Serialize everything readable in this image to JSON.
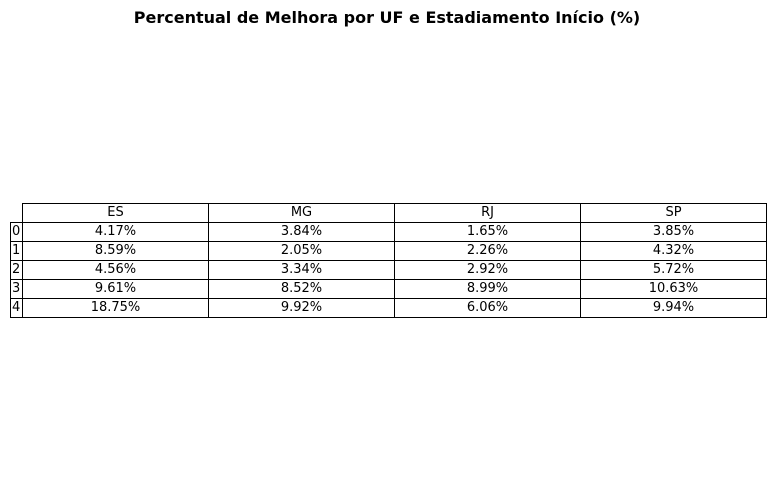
{
  "chart_data": {
    "type": "table",
    "title": "Percentual de Melhora por UF e Estadiamento Início (%)",
    "columns": [
      "ES",
      "MG",
      "RJ",
      "SP"
    ],
    "row_labels": [
      "0",
      "1",
      "2",
      "3",
      "4"
    ],
    "rows": [
      [
        "4.17%",
        "3.84%",
        "1.65%",
        "3.85%"
      ],
      [
        "8.59%",
        "2.05%",
        "2.26%",
        "4.32%"
      ],
      [
        "4.56%",
        "3.34%",
        "2.92%",
        "5.72%"
      ],
      [
        "9.61%",
        "8.52%",
        "8.99%",
        "10.63%"
      ],
      [
        "18.75%",
        "9.92%",
        "6.06%",
        "9.94%"
      ]
    ]
  }
}
